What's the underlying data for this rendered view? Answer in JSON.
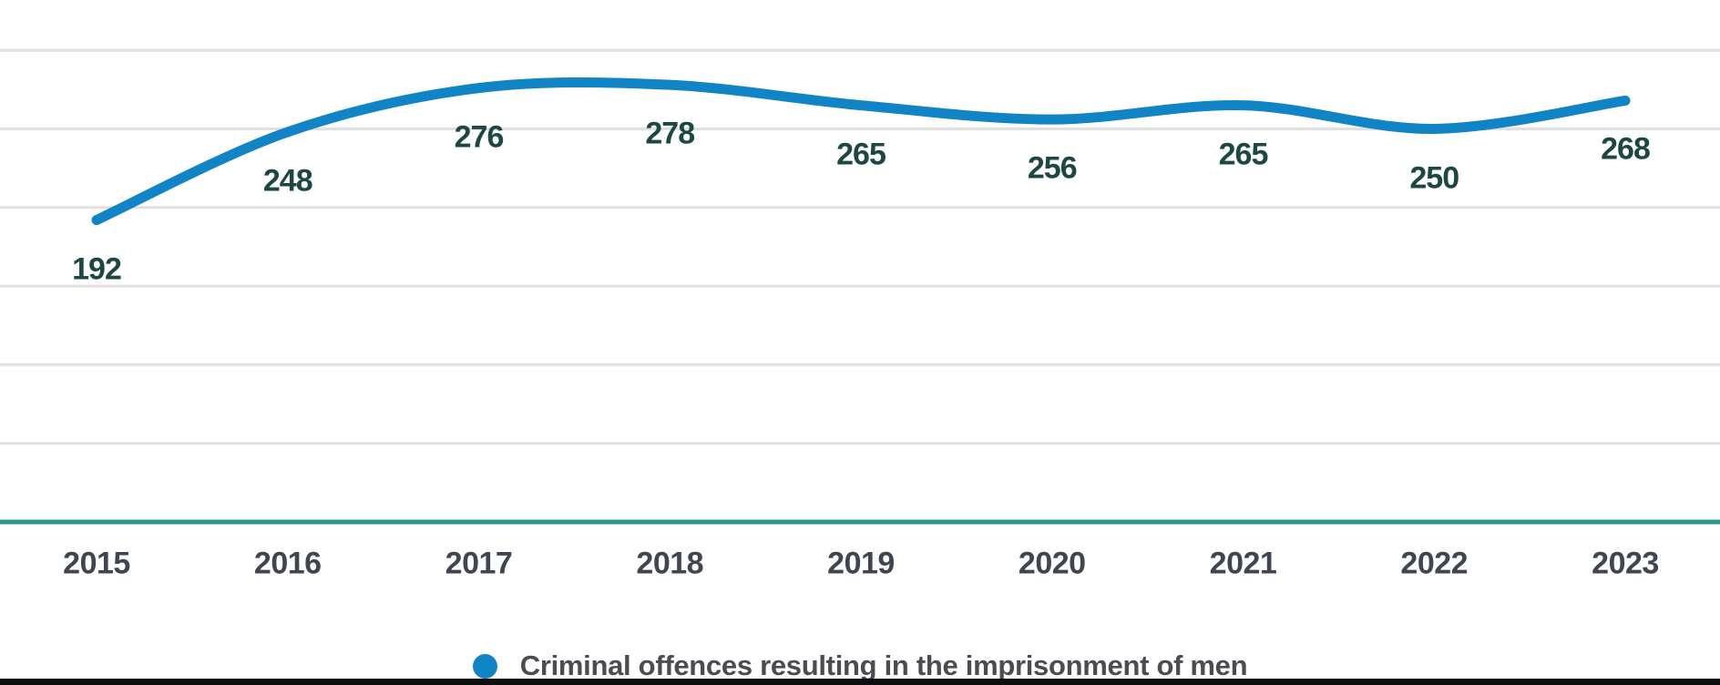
{
  "chart_data": {
    "type": "line",
    "title": "",
    "xlabel": "",
    "ylabel": "",
    "categories": [
      "2015",
      "2016",
      "2017",
      "2018",
      "2019",
      "2020",
      "2021",
      "2022",
      "2023"
    ],
    "series": [
      {
        "name": "Criminal offences resulting in the imprisonment of men",
        "values": [
          192,
          248,
          276,
          278,
          265,
          256,
          265,
          250,
          268
        ],
        "color": "#1184c6"
      }
    ],
    "ylim": [
      0,
      300
    ],
    "grid_step": 50,
    "grid": true,
    "value_labels_shown": true,
    "legend_position": "bottom-center",
    "gridline_color": "#e0e0e0",
    "axis_line_color": "#2a968a",
    "value_label_color": "#1d4742",
    "category_label_color": "#3f4551"
  },
  "legend": {
    "label": "Criminal offences resulting in the imprisonment of men",
    "text_color": "#4b4b52",
    "marker_color": "#1184c6"
  },
  "footer": {
    "bar_color": "#0e0e0e"
  }
}
